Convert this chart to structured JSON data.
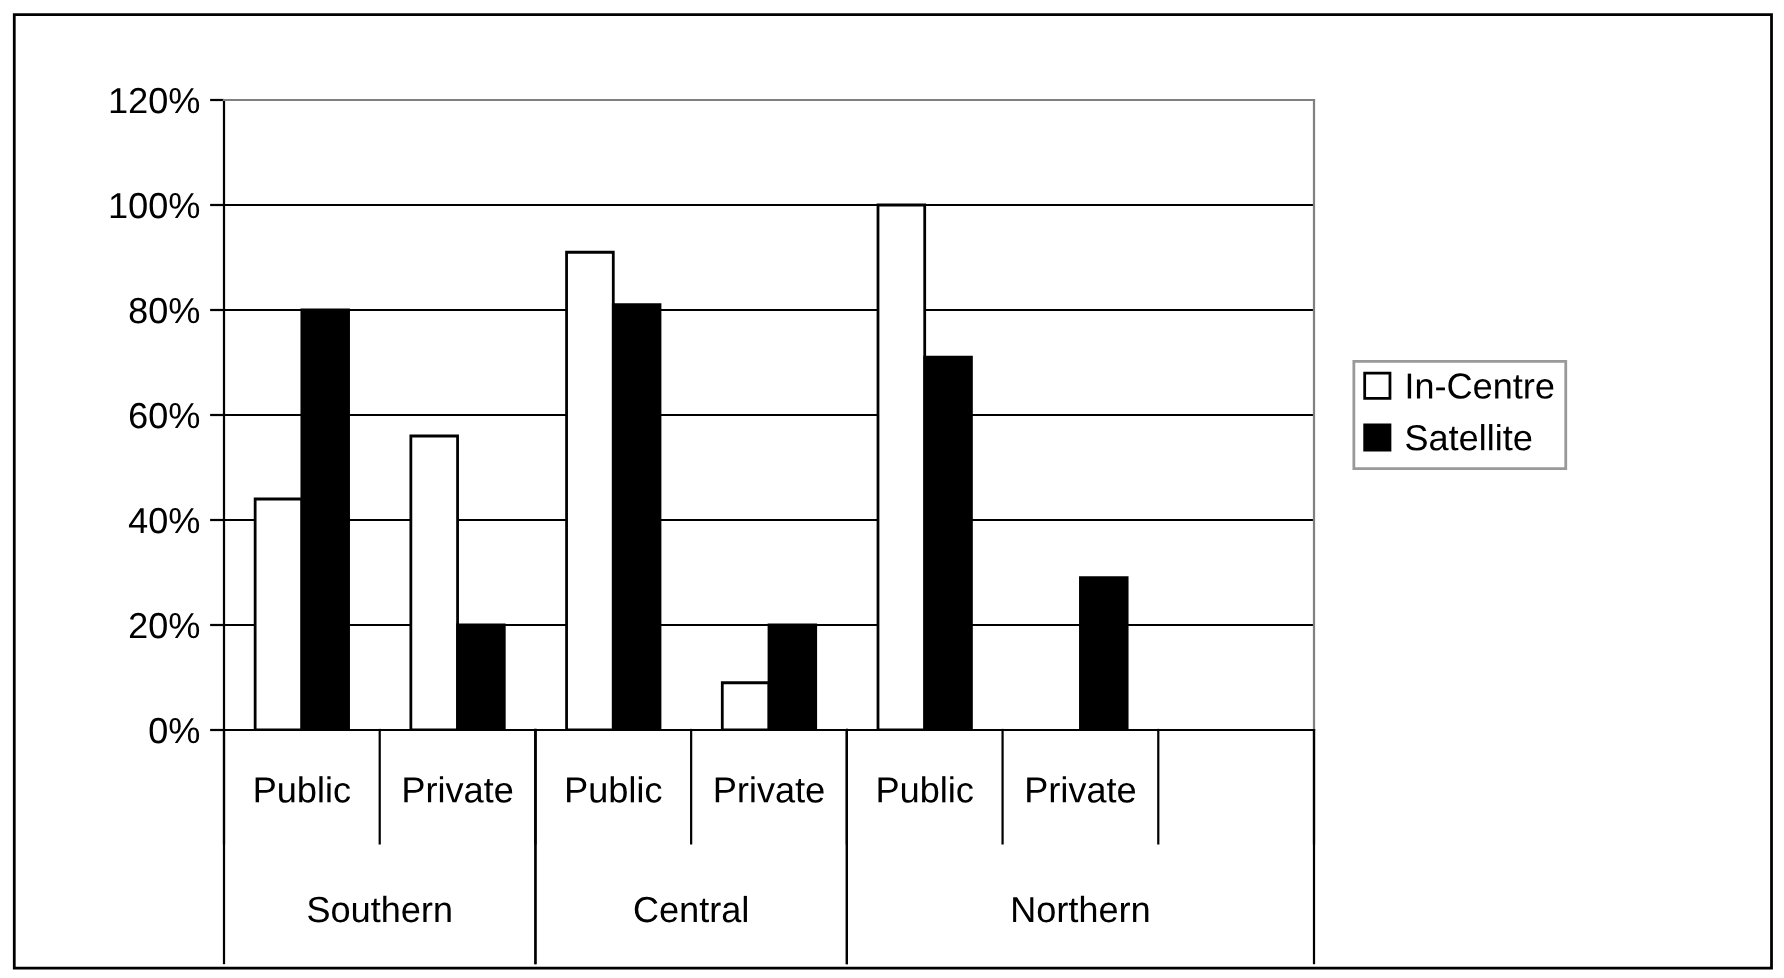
{
  "chart_data": {
    "type": "bar",
    "categories": [
      "Public",
      "Private",
      "Public",
      "Private",
      "Public",
      "Private",
      null
    ],
    "series": [
      {
        "name": "In-Centre",
        "color": "#ffffff",
        "values": [
          44,
          56,
          91,
          9,
          100,
          null,
          null
        ]
      },
      {
        "name": "Satellite",
        "color": "#000000",
        "values": [
          80,
          20,
          81,
          20,
          71,
          29,
          null
        ]
      }
    ],
    "annotations": [
      "Southern",
      "Central",
      "Northern"
    ],
    "ylim": [
      0,
      120
    ],
    "yticks": [
      {
        "value": 0,
        "label": "0%"
      },
      {
        "value": 20,
        "label": "20%"
      },
      {
        "value": 40,
        "label": "40%"
      },
      {
        "value": 60,
        "label": "60%"
      },
      {
        "value": 80,
        "label": "80%"
      },
      {
        "value": 100,
        "label": "100%"
      },
      {
        "value": 120,
        "label": "120%"
      }
    ],
    "grid": "y",
    "legend": "right"
  }
}
